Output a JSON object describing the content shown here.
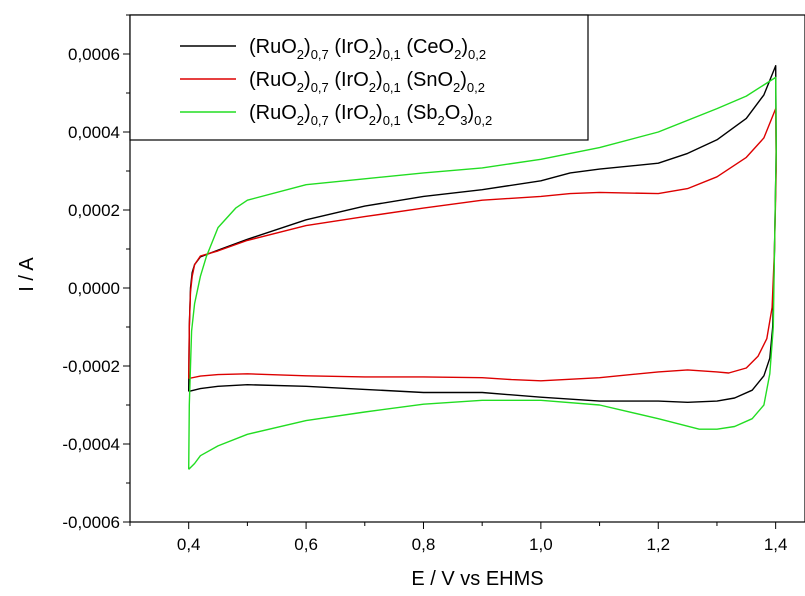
{
  "chart_data": {
    "type": "line",
    "title": "",
    "xlabel": "E / V vs EHMS",
    "ylabel": "I / A",
    "xlim": [
      0.3,
      1.45
    ],
    "ylim": [
      -0.0006,
      0.0007
    ],
    "x_ticks": [
      0.4,
      0.6,
      0.8,
      1.0,
      1.2,
      1.4
    ],
    "x_tick_labels": [
      "0,4",
      "0,6",
      "0,8",
      "1,0",
      "1,2",
      "1,4"
    ],
    "y_ticks": [
      -0.0006,
      -0.0004,
      -0.0002,
      0.0,
      0.0002,
      0.0004,
      0.0006
    ],
    "y_tick_labels": [
      "-0,0006",
      "-0,0004",
      "-0,0002",
      "0,0000",
      "0,0002",
      "0,0004",
      "0,0006"
    ],
    "grid": false,
    "legend_position": "top-left",
    "series": [
      {
        "name": "(RuO2)0,7 (IrO2)0,1 (CeO2)0,2",
        "legend": [
          [
            "(RuO",
            ""
          ],
          [
            "2",
            "sub"
          ],
          [
            ")",
            ""
          ],
          [
            "0,7",
            "sub"
          ],
          [
            " (IrO",
            ""
          ],
          [
            "2",
            "sub"
          ],
          [
            ")",
            ""
          ],
          [
            "0,1",
            "sub"
          ],
          [
            " (CeO",
            ""
          ],
          [
            "2",
            "sub"
          ],
          [
            ")",
            ""
          ],
          [
            "0,2",
            "sub"
          ]
        ],
        "color": "#000000",
        "points": [
          [
            0.4,
            -0.000265
          ],
          [
            0.401,
            -0.0001
          ],
          [
            0.403,
            0.0
          ],
          [
            0.406,
            4e-05
          ],
          [
            0.41,
            6e-05
          ],
          [
            0.42,
            8e-05
          ],
          [
            0.45,
            9.7e-05
          ],
          [
            0.5,
            0.000125
          ],
          [
            0.6,
            0.000175
          ],
          [
            0.7,
            0.00021
          ],
          [
            0.8,
            0.000235
          ],
          [
            0.9,
            0.000252
          ],
          [
            1.0,
            0.000275
          ],
          [
            1.05,
            0.000295
          ],
          [
            1.1,
            0.000305
          ],
          [
            1.2,
            0.00032
          ],
          [
            1.25,
            0.000345
          ],
          [
            1.3,
            0.00038
          ],
          [
            1.35,
            0.000435
          ],
          [
            1.38,
            0.000495
          ],
          [
            1.4,
            0.00057
          ],
          [
            1.401,
            0.00035
          ],
          [
            1.398,
            0.0001
          ],
          [
            1.395,
            -0.0001
          ],
          [
            1.39,
            -0.00018
          ],
          [
            1.38,
            -0.000225
          ],
          [
            1.36,
            -0.000262
          ],
          [
            1.33,
            -0.000282
          ],
          [
            1.3,
            -0.00029
          ],
          [
            1.25,
            -0.000293
          ],
          [
            1.2,
            -0.00029
          ],
          [
            1.1,
            -0.00029
          ],
          [
            1.0,
            -0.00028
          ],
          [
            0.9,
            -0.000268
          ],
          [
            0.8,
            -0.000268
          ],
          [
            0.7,
            -0.00026
          ],
          [
            0.6,
            -0.000252
          ],
          [
            0.5,
            -0.000248
          ],
          [
            0.45,
            -0.000252
          ],
          [
            0.42,
            -0.000258
          ],
          [
            0.4,
            -0.000265
          ]
        ]
      },
      {
        "name": "(RuO2)0,7 (IrO2)0,1 (SnO2)0,2",
        "legend": [
          [
            "(RuO",
            ""
          ],
          [
            "2",
            "sub"
          ],
          [
            ")",
            ""
          ],
          [
            "0,7",
            "sub"
          ],
          [
            " (IrO",
            ""
          ],
          [
            "2",
            "sub"
          ],
          [
            ")",
            ""
          ],
          [
            "0,1",
            "sub"
          ],
          [
            " (SnO",
            ""
          ],
          [
            "2",
            "sub"
          ],
          [
            ")",
            ""
          ],
          [
            "0,2",
            "sub"
          ]
        ],
        "color": "#dd0000",
        "points": [
          [
            0.4,
            -0.000232
          ],
          [
            0.401,
            -0.0001
          ],
          [
            0.403,
            -1e-05
          ],
          [
            0.406,
            3e-05
          ],
          [
            0.41,
            6e-05
          ],
          [
            0.42,
            8.2e-05
          ],
          [
            0.45,
            9.5e-05
          ],
          [
            0.5,
            0.000122
          ],
          [
            0.6,
            0.00016
          ],
          [
            0.7,
            0.000183
          ],
          [
            0.8,
            0.000205
          ],
          [
            0.9,
            0.000225
          ],
          [
            1.0,
            0.000235
          ],
          [
            1.05,
            0.000242
          ],
          [
            1.1,
            0.000245
          ],
          [
            1.2,
            0.000242
          ],
          [
            1.25,
            0.000255
          ],
          [
            1.3,
            0.000285
          ],
          [
            1.35,
            0.000335
          ],
          [
            1.38,
            0.000385
          ],
          [
            1.4,
            0.00046
          ],
          [
            1.401,
            0.0003
          ],
          [
            1.398,
            0.0001
          ],
          [
            1.394,
            -5e-05
          ],
          [
            1.385,
            -0.00013
          ],
          [
            1.37,
            -0.000175
          ],
          [
            1.35,
            -0.000205
          ],
          [
            1.32,
            -0.000218
          ],
          [
            1.3,
            -0.000215
          ],
          [
            1.25,
            -0.00021
          ],
          [
            1.2,
            -0.000215
          ],
          [
            1.1,
            -0.00023
          ],
          [
            1.0,
            -0.000238
          ],
          [
            0.95,
            -0.000235
          ],
          [
            0.9,
            -0.00023
          ],
          [
            0.8,
            -0.000228
          ],
          [
            0.7,
            -0.000228
          ],
          [
            0.6,
            -0.000225
          ],
          [
            0.5,
            -0.00022
          ],
          [
            0.45,
            -0.000222
          ],
          [
            0.42,
            -0.000226
          ],
          [
            0.4,
            -0.000232
          ]
        ]
      },
      {
        "name": "(RuO2)0,7 (IrO2)0,1 (Sb2O3)0,2",
        "legend": [
          [
            "(RuO",
            ""
          ],
          [
            "2",
            "sub"
          ],
          [
            ")",
            ""
          ],
          [
            "0,7",
            "sub"
          ],
          [
            " (IrO",
            ""
          ],
          [
            "2",
            "sub"
          ],
          [
            ")",
            ""
          ],
          [
            "0,1",
            "sub"
          ],
          [
            " (Sb",
            ""
          ],
          [
            "2",
            "sub"
          ],
          [
            "O",
            ""
          ],
          [
            "3",
            "sub"
          ],
          [
            ")",
            ""
          ],
          [
            "0,2",
            "sub"
          ]
        ],
        "color": "#22dd22",
        "points": [
          [
            0.4,
            -0.000465
          ],
          [
            0.401,
            -0.0003
          ],
          [
            0.403,
            -0.0002
          ],
          [
            0.405,
            -0.00011
          ],
          [
            0.41,
            -4e-05
          ],
          [
            0.42,
            3e-05
          ],
          [
            0.43,
            8e-05
          ],
          [
            0.45,
            0.000155
          ],
          [
            0.48,
            0.000205
          ],
          [
            0.5,
            0.000225
          ],
          [
            0.6,
            0.000265
          ],
          [
            0.7,
            0.00028
          ],
          [
            0.8,
            0.000295
          ],
          [
            0.9,
            0.000308
          ],
          [
            1.0,
            0.00033
          ],
          [
            1.1,
            0.00036
          ],
          [
            1.2,
            0.0004
          ],
          [
            1.3,
            0.00046
          ],
          [
            1.35,
            0.000492
          ],
          [
            1.4,
            0.00054
          ],
          [
            1.401,
            0.00035
          ],
          [
            1.398,
            0.0001
          ],
          [
            1.396,
            -0.0001
          ],
          [
            1.39,
            -0.00022
          ],
          [
            1.38,
            -0.0003
          ],
          [
            1.36,
            -0.000335
          ],
          [
            1.33,
            -0.000355
          ],
          [
            1.3,
            -0.000362
          ],
          [
            1.27,
            -0.000362
          ],
          [
            1.2,
            -0.000335
          ],
          [
            1.1,
            -0.0003
          ],
          [
            1.0,
            -0.000288
          ],
          [
            0.9,
            -0.000288
          ],
          [
            0.8,
            -0.000298
          ],
          [
            0.7,
            -0.000318
          ],
          [
            0.6,
            -0.00034
          ],
          [
            0.5,
            -0.000375
          ],
          [
            0.45,
            -0.000405
          ],
          [
            0.42,
            -0.00043
          ],
          [
            0.41,
            -0.00045
          ],
          [
            0.4,
            -0.000465
          ]
        ]
      }
    ]
  }
}
